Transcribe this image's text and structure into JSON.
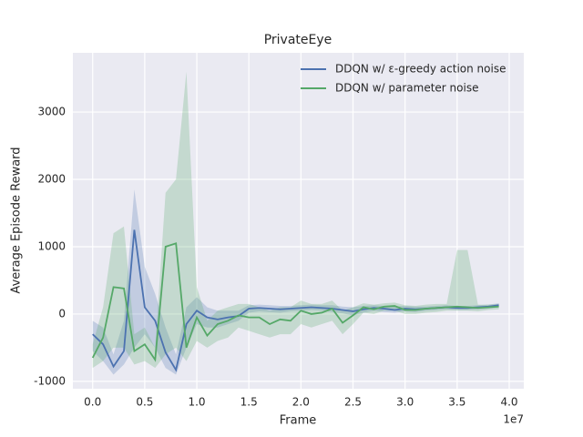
{
  "chart_data": {
    "type": "line",
    "title": "PrivateEye",
    "xlabel": "Frame",
    "ylabel": "Average Episode Reward",
    "x_offset_label": "1e7",
    "x": [
      0.0,
      0.1,
      0.2,
      0.3,
      0.4,
      0.5,
      0.6,
      0.7,
      0.8,
      0.9,
      1.0,
      1.1,
      1.2,
      1.3,
      1.4,
      1.5,
      1.6,
      1.7,
      1.8,
      1.9,
      2.0,
      2.1,
      2.2,
      2.3,
      2.4,
      2.5,
      2.6,
      2.7,
      2.8,
      2.9,
      3.0,
      3.1,
      3.2,
      3.3,
      3.4,
      3.5,
      3.6,
      3.7,
      3.8,
      3.9
    ],
    "series": [
      {
        "name": "DDQN w/ ε-greedy action noise",
        "color": "#4c72b0",
        "values": [
          -300,
          -450,
          -780,
          -550,
          1250,
          100,
          -100,
          -570,
          -830,
          -150,
          50,
          -50,
          -80,
          -50,
          -30,
          80,
          90,
          80,
          70,
          80,
          90,
          100,
          90,
          80,
          60,
          40,
          70,
          90,
          80,
          60,
          80,
          70,
          80,
          90,
          100,
          90,
          90,
          100,
          110,
          130
        ],
        "lower": [
          -550,
          -700,
          -900,
          -750,
          -500,
          -300,
          -500,
          -800,
          -900,
          -500,
          -150,
          -200,
          -200,
          -150,
          -100,
          20,
          40,
          30,
          20,
          40,
          50,
          60,
          50,
          30,
          10,
          -20,
          20,
          50,
          30,
          20,
          40,
          30,
          50,
          60,
          70,
          60,
          60,
          70,
          80,
          100
        ],
        "upper": [
          -100,
          -200,
          -600,
          -100,
          1850,
          700,
          300,
          -200,
          -600,
          100,
          250,
          100,
          50,
          50,
          50,
          130,
          140,
          130,
          120,
          120,
          130,
          140,
          130,
          130,
          110,
          100,
          120,
          130,
          120,
          110,
          120,
          110,
          110,
          120,
          130,
          120,
          120,
          130,
          140,
          160
        ]
      },
      {
        "name": "DDQN w/ parameter noise",
        "color": "#55a868",
        "values": [
          -650,
          -350,
          400,
          380,
          -550,
          -450,
          -680,
          1000,
          1050,
          -500,
          -50,
          -320,
          -150,
          -100,
          -20,
          -50,
          -50,
          -150,
          -80,
          -100,
          50,
          0,
          20,
          80,
          -130,
          -20,
          100,
          70,
          110,
          120,
          60,
          60,
          80,
          90,
          100,
          110,
          100,
          90,
          100,
          110
        ],
        "lower": [
          -800,
          -700,
          -500,
          -500,
          -750,
          -700,
          -800,
          -600,
          -500,
          -700,
          -400,
          -500,
          -400,
          -350,
          -200,
          -250,
          -300,
          -350,
          -300,
          -300,
          -150,
          -200,
          -150,
          -100,
          -300,
          -150,
          20,
          0,
          50,
          50,
          0,
          0,
          20,
          30,
          50,
          50,
          50,
          40,
          60,
          70
        ],
        "upper": [
          -450,
          100,
          1200,
          1300,
          -300,
          -200,
          -500,
          1800,
          2000,
          3600,
          400,
          -100,
          50,
          100,
          150,
          150,
          100,
          50,
          100,
          100,
          200,
          150,
          150,
          200,
          50,
          100,
          160,
          140,
          160,
          170,
          130,
          120,
          140,
          150,
          150,
          950,
          950,
          140,
          140,
          150
        ]
      }
    ],
    "xlim": [
      -0.19,
      4.14
    ],
    "ylim": [
      -1110,
      3880
    ],
    "xticks": [
      {
        "value": 0,
        "label": "0.0"
      },
      0.5,
      {
        "value": 1,
        "label": "1.0"
      },
      1.5,
      {
        "value": 2,
        "label": "2.0"
      },
      2.5,
      {
        "value": 3,
        "label": "3.0"
      },
      3.5,
      {
        "value": 4,
        "label": "4.0"
      }
    ],
    "yticks": [
      -1000,
      0,
      1000,
      2000,
      3000
    ],
    "grid": true,
    "legend": "upper right"
  }
}
